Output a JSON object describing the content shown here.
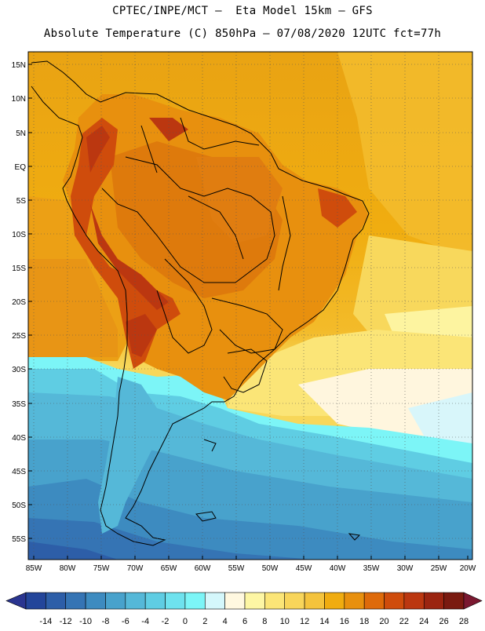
{
  "header": {
    "line1": "CPTEC/INPE/MCT –  Eta Model 15km – GFS",
    "line2": "Absolute Temperature (C) 850hPa – 07/08/2020 12UTC fct=77h"
  },
  "map": {
    "lat_labels": [
      "15N",
      "10N",
      "5N",
      "EQ",
      "5S",
      "10S",
      "15S",
      "20S",
      "25S",
      "30S",
      "35S",
      "40S",
      "45S",
      "50S",
      "55S"
    ],
    "lon_labels": [
      "85W",
      "80W",
      "75W",
      "70W",
      "65W",
      "60W",
      "55W",
      "50W",
      "45W",
      "40W",
      "35W",
      "30W",
      "25W",
      "20W"
    ],
    "region": "South America",
    "colors": {
      "ocean_warm": "#f0ac10",
      "land_hot": "#b5400f",
      "ocean_cold": "#4ec8e0",
      "deep_cold": "#2e7fc6"
    }
  },
  "colorbar": {
    "labels": [
      "-14",
      "-12",
      "-10",
      "-8",
      "-6",
      "-4",
      "-2",
      "0",
      "2",
      "4",
      "6",
      "8",
      "10",
      "12",
      "14",
      "16",
      "18",
      "20",
      "22",
      "24",
      "26",
      "28"
    ],
    "colors": [
      "#23459a",
      "#2d5ea8",
      "#3574b4",
      "#3d8bc0",
      "#48a2cc",
      "#55b8d8",
      "#5fcde3",
      "#6ee2ee",
      "#7cf5f7",
      "#d4f7fb",
      "#fff8e0",
      "#fdf6a4",
      "#fbe577",
      "#f8d55a",
      "#f4c33c",
      "#f0ac10",
      "#e8900e",
      "#de6a0a",
      "#cf4c0c",
      "#bb3710",
      "#9b2410",
      "#7a1a10"
    ],
    "under_color": "#2a3590",
    "over_color": "#7a1830"
  }
}
